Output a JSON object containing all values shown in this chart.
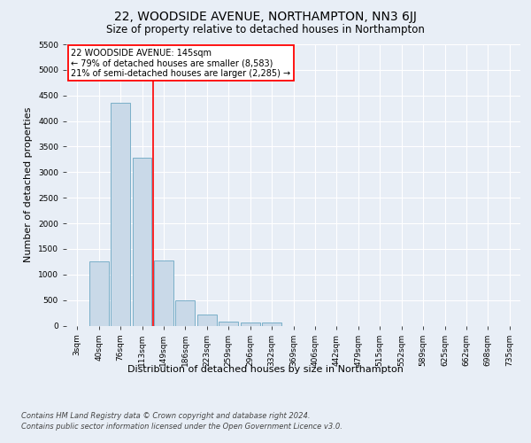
{
  "title": "22, WOODSIDE AVENUE, NORTHAMPTON, NN3 6JJ",
  "subtitle": "Size of property relative to detached houses in Northampton",
  "xlabel": "Distribution of detached houses by size in Northampton",
  "ylabel": "Number of detached properties",
  "bar_labels": [
    "3sqm",
    "40sqm",
    "76sqm",
    "113sqm",
    "149sqm",
    "186sqm",
    "223sqm",
    "259sqm",
    "296sqm",
    "332sqm",
    "369sqm",
    "406sqm",
    "442sqm",
    "479sqm",
    "515sqm",
    "552sqm",
    "589sqm",
    "625sqm",
    "662sqm",
    "698sqm",
    "735sqm"
  ],
  "bar_values": [
    0,
    1250,
    4350,
    3280,
    1270,
    490,
    215,
    85,
    55,
    55,
    0,
    0,
    0,
    0,
    0,
    0,
    0,
    0,
    0,
    0,
    0
  ],
  "bar_color": "#c9d9e8",
  "bar_edge_color": "#7aafc8",
  "red_line_x": 3.5,
  "annotation_text": "22 WOODSIDE AVENUE: 145sqm\n← 79% of detached houses are smaller (8,583)\n21% of semi-detached houses are larger (2,285) →",
  "annotation_box_color": "white",
  "annotation_box_edge_color": "red",
  "ylim": [
    0,
    5500
  ],
  "yticks": [
    0,
    500,
    1000,
    1500,
    2000,
    2500,
    3000,
    3500,
    4000,
    4500,
    5000,
    5500
  ],
  "footer_line1": "Contains HM Land Registry data © Crown copyright and database right 2024.",
  "footer_line2": "Contains public sector information licensed under the Open Government Licence v3.0.",
  "bg_color": "#e8eef6",
  "plot_bg_color": "#e8eef6",
  "grid_color": "white",
  "title_fontsize": 10,
  "subtitle_fontsize": 8.5,
  "axis_label_fontsize": 8,
  "tick_fontsize": 6.5,
  "footer_fontsize": 6,
  "annotation_fontsize": 7
}
